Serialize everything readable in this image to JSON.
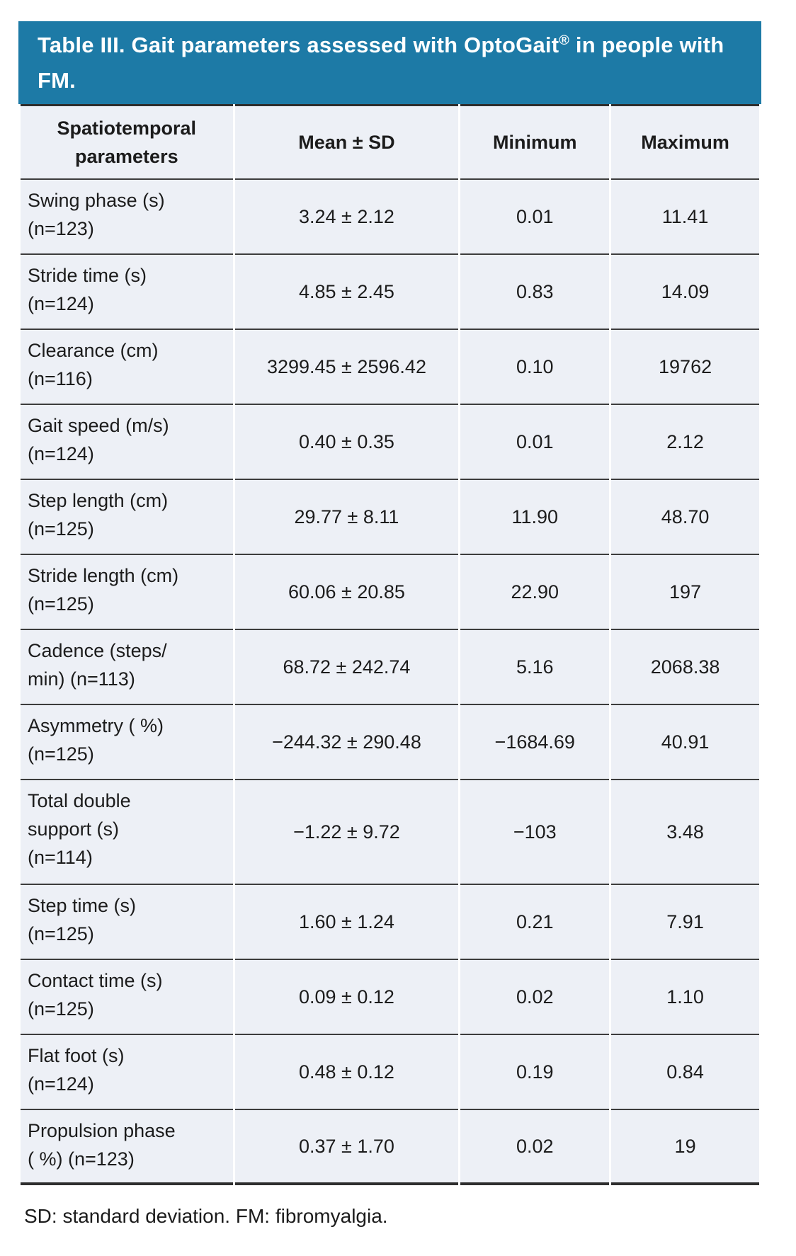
{
  "title": {
    "pre": "Table III. Gait parameters assessed with OptoGait",
    "sup": "®",
    "post": " in people with FM."
  },
  "columns": {
    "parameter": "Spatiotemporal\nparameters",
    "mean_sd": "Mean ± SD",
    "min": "Minimum",
    "max": "Maximum"
  },
  "rows": [
    {
      "parameter": "Swing phase (s)\n(n=123)",
      "mean_sd": "3.24 ± 2.12",
      "min": "0.01",
      "max": "11.41"
    },
    {
      "parameter": "Stride time (s)\n(n=124)",
      "mean_sd": "4.85 ± 2.45",
      "min": "0.83",
      "max": "14.09"
    },
    {
      "parameter": "Clearance (cm)\n(n=116)",
      "mean_sd": "3299.45 ± 2596.42",
      "min": "0.10",
      "max": "19762"
    },
    {
      "parameter": "Gait speed (m/s)\n(n=124)",
      "mean_sd": "0.40 ± 0.35",
      "min": "0.01",
      "max": "2.12"
    },
    {
      "parameter": "Step length (cm)\n(n=125)",
      "mean_sd": "29.77 ± 8.11",
      "min": "11.90",
      "max": "48.70"
    },
    {
      "parameter": "Stride length (cm)\n(n=125)",
      "mean_sd": "60.06 ± 20.85",
      "min": "22.90",
      "max": "197"
    },
    {
      "parameter": "Cadence (steps/\nmin) (n=113)",
      "mean_sd": "68.72 ± 242.74",
      "min": "5.16",
      "max": "2068.38"
    },
    {
      "parameter": "Asymmetry ( %)\n(n=125)",
      "mean_sd": "−244.32 ± 290.48",
      "min": "−1684.69",
      "max": "40.91"
    },
    {
      "parameter": "Total double\nsupport (s)\n(n=114)",
      "mean_sd": "−1.22 ± 9.72",
      "min": "−103",
      "max": "3.48"
    },
    {
      "parameter": "Step time (s)\n(n=125)",
      "mean_sd": "1.60 ± 1.24",
      "min": "0.21",
      "max": "7.91"
    },
    {
      "parameter": "Contact time (s)\n(n=125)",
      "mean_sd": "0.09 ± 0.12",
      "min": "0.02",
      "max": "1.10"
    },
    {
      "parameter": "Flat foot (s)\n(n=124)",
      "mean_sd": "0.48 ± 0.12",
      "min": "0.19",
      "max": "0.84"
    },
    {
      "parameter": "Propulsion phase\n( %) (n=123)",
      "mean_sd": "0.37 ± 1.70",
      "min": "0.02",
      "max": "19"
    }
  ],
  "footnote": "SD: standard deviation. FM: fibromyalgia.",
  "colors": {
    "caption_background": "#1d7aa6",
    "caption_text": "#ffffff",
    "cell_background": "#edf0f6",
    "rule_line": "#3c3c3c",
    "body_text": "#1c1c1c"
  }
}
